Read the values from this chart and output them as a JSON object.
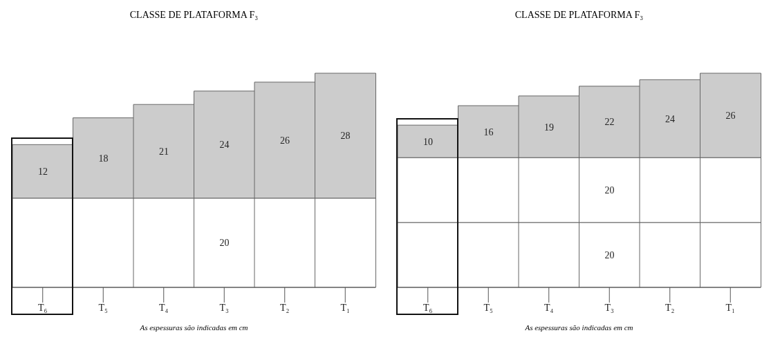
{
  "chart_data": [
    {
      "type": "bar",
      "title": "CLASSE DE PLATAFORMA F₃",
      "categories": [
        "T₆",
        "T₅",
        "T₄",
        "T₃",
        "T₂",
        "T₁"
      ],
      "stacked": true,
      "legend": false,
      "grid": false,
      "annotations": [
        "As espessuras são indicadas em cm"
      ],
      "series": [
        {
          "color": "#ffffff",
          "values": [
            20,
            20,
            20,
            20,
            20,
            20
          ],
          "value_labels": [
            null,
            null,
            null,
            "20",
            null,
            null
          ]
        },
        {
          "color": "#cccccc",
          "values": [
            12,
            18,
            21,
            24,
            26,
            28
          ],
          "value_labels": [
            "12",
            "18",
            "21",
            "24",
            "26",
            "28"
          ]
        }
      ]
    },
    {
      "type": "bar",
      "title": "CLASSE DE PLATAFORMA F₃",
      "categories": [
        "T₆",
        "T₅",
        "T₄",
        "T₃",
        "T₂",
        "T₁"
      ],
      "stacked": true,
      "legend": false,
      "grid": false,
      "annotations": [
        "As espessuras são indicadas em cm"
      ],
      "series": [
        {
          "color": "#ffffff",
          "values": [
            20,
            20,
            20,
            20,
            20,
            20
          ],
          "value_labels": [
            null,
            null,
            null,
            "20",
            null,
            null
          ]
        },
        {
          "color": "#ffffff",
          "values": [
            20,
            20,
            20,
            20,
            20,
            20
          ],
          "value_labels": [
            null,
            null,
            null,
            "20",
            null,
            null
          ]
        },
        {
          "color": "#cccccc",
          "values": [
            10,
            16,
            19,
            22,
            24,
            26
          ],
          "value_labels": [
            "10",
            "16",
            "19",
            "22",
            "24",
            "26"
          ]
        }
      ]
    }
  ]
}
